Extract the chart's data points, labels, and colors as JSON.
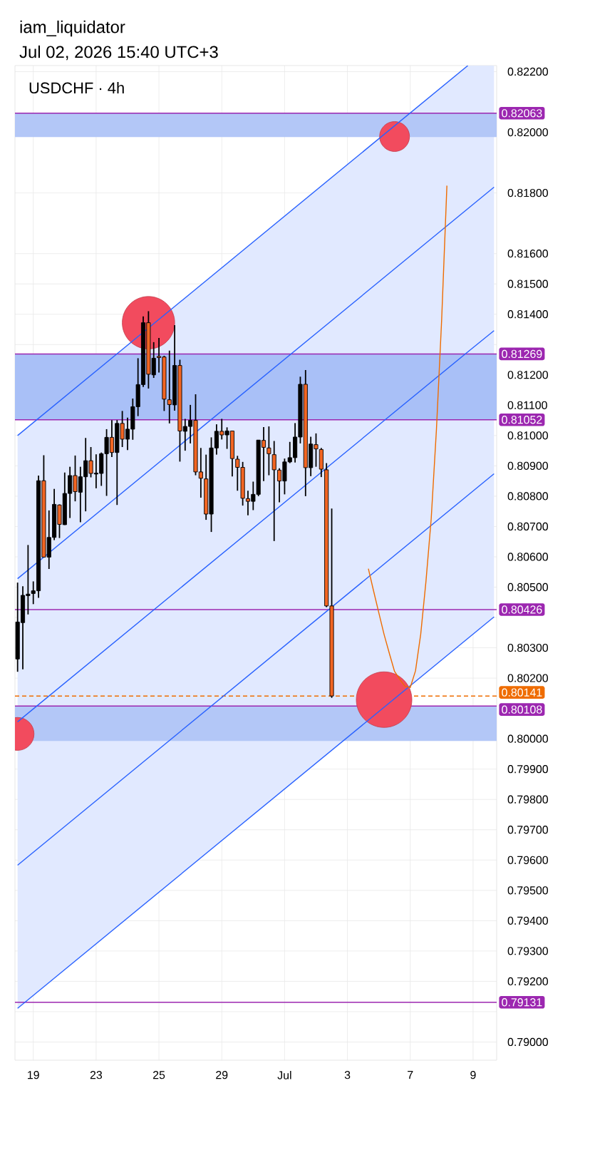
{
  "chart_data": {
    "type": "candlestick",
    "title": "USDCHF · 4h",
    "annotations": [
      "iam_liquidator",
      "Jul 02, 2026 15:40 UTC+3"
    ],
    "categories": [
      null,
      null,
      null,
      "19",
      null,
      null,
      null,
      null,
      null,
      null,
      null,
      null,
      null,
      null,
      null,
      "23",
      null,
      null,
      null,
      null,
      null,
      null,
      null,
      null,
      null,
      null,
      null,
      "25",
      null,
      null,
      null,
      null,
      null,
      null,
      null,
      null,
      null,
      null,
      null,
      "29",
      null,
      null,
      null,
      null,
      null,
      null,
      null,
      null,
      null,
      null,
      null,
      "Jul",
      null,
      null,
      null,
      null,
      null,
      null,
      null,
      null,
      null,
      null,
      null,
      "3",
      null,
      null,
      null,
      null,
      null,
      null,
      null,
      null,
      null,
      null,
      null,
      "7",
      null,
      null,
      null,
      null,
      null,
      null,
      null,
      null,
      null,
      null,
      null,
      "9",
      null,
      null,
      null,
      null
    ],
    "ylim": [
      0.7894,
      0.8222
    ],
    "yticks": [
      {
        "value": 0.79,
        "label": "0.79000"
      },
      {
        "value": 0.791,
        "label": null
      },
      {
        "value": 0.792,
        "label": "0.79200"
      },
      {
        "value": 0.793,
        "label": "0.79300"
      },
      {
        "value": 0.794,
        "label": "0.79400"
      },
      {
        "value": 0.795,
        "label": "0.79500"
      },
      {
        "value": 0.796,
        "label": "0.79600"
      },
      {
        "value": 0.797,
        "label": "0.79700"
      },
      {
        "value": 0.798,
        "label": "0.79800"
      },
      {
        "value": 0.799,
        "label": "0.79900"
      },
      {
        "value": 0.8,
        "label": "0.80000"
      },
      {
        "value": 0.801,
        "label": null
      },
      {
        "value": 0.802,
        "label": "0.80200"
      },
      {
        "value": 0.803,
        "label": "0.80300"
      },
      {
        "value": 0.804,
        "label": null
      },
      {
        "value": 0.805,
        "label": "0.80500"
      },
      {
        "value": 0.806,
        "label": "0.80600"
      },
      {
        "value": 0.807,
        "label": "0.80700"
      },
      {
        "value": 0.808,
        "label": "0.80800"
      },
      {
        "value": 0.809,
        "label": "0.80900"
      },
      {
        "value": 0.81,
        "label": "0.81000"
      },
      {
        "value": 0.811,
        "label": "0.81100"
      },
      {
        "value": 0.812,
        "label": "0.81200"
      },
      {
        "value": 0.813,
        "label": null
      },
      {
        "value": 0.814,
        "label": "0.81400"
      },
      {
        "value": 0.815,
        "label": "0.81500"
      },
      {
        "value": 0.816,
        "label": "0.81600"
      },
      {
        "value": 0.818,
        "label": "0.81800"
      },
      {
        "value": 0.82,
        "label": "0.82000"
      },
      {
        "value": 0.822,
        "label": "0.82200"
      }
    ],
    "grid": true,
    "bands": [
      {
        "axis": "y",
        "from": 0.81984,
        "to": 0.82063,
        "color": "#b3c7f7"
      },
      {
        "axis": "y",
        "from": 0.81052,
        "to": 0.81269,
        "color": "#a9c0f7"
      },
      {
        "axis": "y",
        "from": 0.79993,
        "to": 0.80108,
        "color": "#b3c7f7"
      }
    ],
    "ref_lines": [
      {
        "axis": "y",
        "value": 0.82063,
        "label": "0.82063",
        "color": "#9c27b0"
      },
      {
        "axis": "y",
        "value": 0.81269,
        "label": "0.81269",
        "color": "#9c27b0"
      },
      {
        "axis": "y",
        "value": 0.81052,
        "label": "0.81052",
        "color": "#9c27b0"
      },
      {
        "axis": "y",
        "value": 0.80426,
        "label": "0.80426",
        "color": "#9c27b0"
      },
      {
        "axis": "y",
        "value": 0.80141,
        "label": "0.80141",
        "color": "#ef6c00",
        "line_style": "dashed"
      },
      {
        "axis": "y",
        "value": 0.80108,
        "label": "0.80108",
        "color": "#9c27b0"
      },
      {
        "axis": "y",
        "value": 0.79131,
        "label": "0.79131",
        "color": "#9c27b0"
      }
    ],
    "series": [
      {
        "type": "line",
        "color": "#2962ff",
        "values": [
          0.80056,
          null,
          null,
          null,
          null,
          null,
          null,
          null,
          null,
          null,
          null,
          null,
          null,
          null,
          null,
          null,
          null,
          null,
          null,
          null,
          null,
          null,
          null,
          null,
          null,
          null,
          null,
          null,
          null,
          null,
          null,
          null,
          null,
          null,
          null,
          null,
          null,
          null,
          null,
          null,
          null,
          null,
          null,
          null,
          null,
          null,
          null,
          null,
          null,
          null,
          null,
          null,
          null,
          null,
          null,
          null,
          null,
          null,
          null,
          null,
          null,
          null,
          null,
          null,
          null,
          null,
          null,
          null,
          null,
          null,
          null,
          null,
          null,
          null,
          null,
          null,
          null,
          null,
          null,
          null,
          null,
          null,
          null,
          null,
          null,
          null,
          0.81276,
          null,
          null,
          null,
          null,
          0.81346
        ],
        "lower": [
          0.79111,
          null,
          null,
          null,
          null,
          null,
          null,
          null,
          null,
          null,
          null,
          null,
          null,
          null,
          null,
          null,
          null,
          null,
          null,
          null,
          null,
          null,
          null,
          null,
          null,
          null,
          null,
          null,
          null,
          null,
          null,
          null,
          null,
          null,
          null,
          null,
          null,
          null,
          null,
          null,
          null,
          null,
          null,
          null,
          null,
          null,
          null,
          null,
          null,
          null,
          null,
          null,
          null,
          null,
          null,
          null,
          null,
          null,
          null,
          null,
          null,
          null,
          null,
          null,
          null,
          null,
          null,
          null,
          null,
          null,
          null,
          null,
          null,
          null,
          null,
          null,
          null,
          null,
          null,
          null,
          null,
          null,
          null,
          null,
          null,
          null,
          0.80331,
          null,
          null,
          null,
          null,
          0.80402
        ],
        "upper": [
          0.81,
          null,
          null,
          null,
          null,
          null,
          null,
          null,
          null,
          null,
          null,
          null,
          null,
          null,
          null,
          null,
          null,
          null,
          null,
          null,
          null,
          null,
          null,
          null,
          null,
          null,
          null,
          null,
          null,
          null,
          null,
          null,
          null,
          null,
          null,
          null,
          null,
          null,
          null,
          null,
          null,
          null,
          null,
          null,
          null,
          null,
          null,
          null,
          null,
          null,
          null,
          null,
          null,
          null,
          null,
          null,
          null,
          null,
          null,
          null,
          null,
          null,
          null,
          null,
          null,
          null,
          null,
          null,
          null,
          null,
          null,
          null,
          null,
          null,
          null,
          null,
          null,
          null,
          null,
          null,
          null,
          null,
          null,
          null,
          null,
          null,
          0.8222,
          null,
          null,
          null,
          null,
          0.8222
        ]
      },
      {
        "type": "line",
        "color": "#2962ff",
        "values": [
          0.81,
          null,
          null,
          null,
          null,
          null,
          null,
          null,
          null,
          null,
          null,
          null,
          null,
          null,
          null,
          null,
          null,
          null,
          null,
          null,
          null,
          null,
          null,
          null,
          null,
          null,
          null,
          null,
          null,
          null,
          null,
          null,
          null,
          null,
          null,
          null,
          null,
          null,
          null,
          null,
          null,
          null,
          null,
          null,
          null,
          null,
          null,
          null,
          null,
          null,
          null,
          null,
          null,
          null,
          null,
          null,
          null,
          null,
          null,
          null,
          null,
          null,
          null,
          null,
          null,
          null,
          null,
          null,
          null,
          null,
          null,
          null,
          null,
          null,
          null,
          null,
          null,
          null,
          null,
          null,
          null,
          null,
          null,
          null,
          null,
          null,
          0.8222,
          null,
          null,
          null,
          null,
          null
        ]
      },
      {
        "type": "line",
        "color": "#2962ff",
        "values": [
          0.80528,
          null,
          null,
          null,
          null,
          null,
          null,
          null,
          null,
          null,
          null,
          null,
          null,
          null,
          null,
          null,
          null,
          null,
          null,
          null,
          null,
          null,
          null,
          null,
          null,
          null,
          null,
          null,
          null,
          null,
          null,
          null,
          null,
          null,
          null,
          null,
          null,
          null,
          null,
          null,
          null,
          null,
          null,
          null,
          null,
          null,
          null,
          null,
          null,
          null,
          null,
          null,
          null,
          null,
          null,
          null,
          null,
          null,
          null,
          null,
          null,
          null,
          null,
          null,
          null,
          null,
          null,
          null,
          null,
          null,
          null,
          null,
          null,
          null,
          null,
          null,
          null,
          null,
          null,
          null,
          null,
          null,
          null,
          null,
          null,
          null,
          null,
          null,
          null,
          null,
          null,
          0.81819
        ]
      },
      {
        "type": "line",
        "color": "#2962ff",
        "values": [
          0.79583,
          null,
          null,
          null,
          null,
          null,
          null,
          null,
          null,
          null,
          null,
          null,
          null,
          null,
          null,
          null,
          null,
          null,
          null,
          null,
          null,
          null,
          null,
          null,
          null,
          null,
          null,
          null,
          null,
          null,
          null,
          null,
          null,
          null,
          null,
          null,
          null,
          null,
          null,
          null,
          null,
          null,
          null,
          null,
          null,
          null,
          null,
          null,
          null,
          null,
          null,
          null,
          null,
          null,
          null,
          null,
          null,
          null,
          null,
          null,
          null,
          null,
          null,
          null,
          null,
          null,
          null,
          null,
          null,
          null,
          null,
          null,
          null,
          null,
          null,
          null,
          null,
          null,
          null,
          null,
          null,
          null,
          null,
          null,
          null,
          null,
          null,
          null,
          null,
          null,
          null,
          0.80874
        ]
      },
      {
        "type": "line",
        "color": "#2962ff",
        "values": [
          0.79111,
          null,
          null,
          null,
          null,
          null,
          null,
          null,
          null,
          null,
          null,
          null,
          null,
          null,
          null,
          null,
          null,
          null,
          null,
          null,
          null,
          null,
          null,
          null,
          null,
          null,
          null,
          null,
          null,
          null,
          null,
          null,
          null,
          null,
          null,
          null,
          null,
          null,
          null,
          null,
          null,
          null,
          null,
          null,
          null,
          null,
          null,
          null,
          null,
          null,
          null,
          null,
          null,
          null,
          null,
          null,
          null,
          null,
          null,
          null,
          null,
          null,
          null,
          null,
          null,
          null,
          null,
          null,
          null,
          null,
          null,
          null,
          null,
          null,
          null,
          null,
          null,
          null,
          null,
          null,
          null,
          null,
          null,
          null,
          null,
          null,
          null,
          null,
          null,
          null,
          null,
          0.80402
        ]
      },
      {
        "type": "line",
        "color": "#ef6c00",
        "values": [
          null,
          null,
          null,
          null,
          null,
          null,
          null,
          null,
          null,
          null,
          null,
          null,
          null,
          null,
          null,
          null,
          null,
          null,
          null,
          null,
          null,
          null,
          null,
          null,
          null,
          null,
          null,
          null,
          null,
          null,
          null,
          null,
          null,
          null,
          null,
          null,
          null,
          null,
          null,
          null,
          null,
          null,
          null,
          null,
          null,
          null,
          null,
          null,
          null,
          null,
          null,
          null,
          null,
          null,
          null,
          null,
          null,
          null,
          null,
          null,
          null,
          null,
          null,
          null,
          null,
          null,
          null,
          0.80561,
          0.80487,
          0.80415,
          0.80344,
          0.80282,
          0.80222,
          0.80196,
          0.80173,
          0.80169,
          0.80224,
          0.80345,
          0.80519,
          0.80725,
          0.8102,
          0.81383,
          0.81824,
          null,
          null,
          null,
          null,
          null,
          null,
          null,
          null,
          null
        ]
      },
      {
        "ohlc": [
          [
            0.80263,
            0.80515,
            0.80221,
            0.80385
          ],
          [
            0.80383,
            0.80503,
            0.80229,
            0.80473
          ],
          [
            0.80472,
            0.80639,
            0.8041,
            0.80477
          ],
          [
            0.80479,
            0.80519,
            0.80444,
            0.80488
          ],
          [
            0.80488,
            0.80868,
            0.80465,
            0.80851
          ],
          [
            0.80851,
            0.80935,
            0.80599,
            0.80599
          ],
          [
            0.80599,
            0.80753,
            0.8056,
            0.80664
          ],
          [
            0.80664,
            0.80824,
            0.80655,
            0.80773
          ],
          [
            0.80771,
            0.80773,
            0.80662,
            0.80707
          ],
          [
            0.80706,
            0.80878,
            0.80705,
            0.80809
          ],
          [
            0.80809,
            0.80897,
            0.80728,
            0.80868
          ],
          [
            0.80868,
            0.80934,
            0.80783,
            0.80815
          ],
          [
            0.80813,
            0.80897,
            0.80714,
            0.80864
          ],
          [
            0.80864,
            0.80992,
            0.8075,
            0.80917
          ],
          [
            0.80917,
            0.80962,
            0.80862,
            0.80875
          ],
          [
            0.80873,
            0.80938,
            0.80826,
            0.80876
          ],
          [
            0.80875,
            0.80944,
            0.80834,
            0.8094
          ],
          [
            0.8094,
            0.81021,
            0.80801,
            0.80994
          ],
          [
            0.80994,
            0.81051,
            0.80929,
            0.80944
          ],
          [
            0.80944,
            0.81051,
            0.80771,
            0.8104
          ],
          [
            0.8104,
            0.81081,
            0.80962,
            0.80988
          ],
          [
            0.80988,
            0.81059,
            0.80952,
            0.81021
          ],
          [
            0.81021,
            0.81122,
            0.80986,
            0.81095
          ],
          [
            0.81095,
            0.81255,
            0.81064,
            0.81168
          ],
          [
            0.81168,
            0.81393,
            0.8116,
            0.81372
          ],
          [
            0.81372,
            0.8141,
            0.81155,
            0.81202
          ],
          [
            0.812,
            0.81308,
            0.8119,
            0.81255
          ],
          [
            0.81261,
            0.81322,
            0.81208,
            0.81257
          ],
          [
            0.81259,
            0.81263,
            0.81081,
            0.8112
          ],
          [
            0.81118,
            0.8128,
            0.8104,
            0.81102
          ],
          [
            0.81101,
            0.81364,
            0.81082,
            0.81231
          ],
          [
            0.81231,
            0.8125,
            0.80914,
            0.81015
          ],
          [
            0.81014,
            0.81055,
            0.8095,
            0.8103
          ],
          [
            0.8103,
            0.81101,
            0.80974,
            0.8105
          ],
          [
            0.8105,
            0.81136,
            0.80869,
            0.8088
          ],
          [
            0.8088,
            0.80959,
            0.80795,
            0.80859
          ],
          [
            0.80857,
            0.80937,
            0.80722,
            0.80741
          ],
          [
            0.80741,
            0.80994,
            0.80682,
            0.80959
          ],
          [
            0.80959,
            0.81037,
            0.80937,
            0.81014
          ],
          [
            0.81014,
            0.81055,
            0.80987,
            0.81002
          ],
          [
            0.81002,
            0.81027,
            0.80956,
            0.81015
          ],
          [
            0.81015,
            0.81016,
            0.80865,
            0.80924
          ],
          [
            0.80922,
            0.80933,
            0.80818,
            0.80895
          ],
          [
            0.80895,
            0.80913,
            0.80769,
            0.80793
          ],
          [
            0.80792,
            0.80818,
            0.80737,
            0.80783
          ],
          [
            0.80783,
            0.80848,
            0.80754,
            0.80806
          ],
          [
            0.80806,
            0.80985,
            0.808,
            0.80985
          ],
          [
            0.80984,
            0.81028,
            0.8085,
            0.80961
          ],
          [
            0.80959,
            0.8103,
            0.80869,
            0.8094
          ],
          [
            0.80937,
            0.80982,
            0.80652,
            0.80887
          ],
          [
            0.80886,
            0.80892,
            0.8078,
            0.8085
          ],
          [
            0.8085,
            0.80924,
            0.80806,
            0.80913
          ],
          [
            0.80913,
            0.80979,
            0.80909,
            0.80927
          ],
          [
            0.80927,
            0.81041,
            0.80911,
            0.80995
          ],
          [
            0.80995,
            0.81194,
            0.80974,
            0.81169
          ],
          [
            0.81169,
            0.81216,
            0.808,
            0.80894
          ],
          [
            0.80894,
            0.80996,
            0.80866,
            0.80972
          ],
          [
            0.8097,
            0.81007,
            0.80897,
            0.80956
          ],
          [
            0.80954,
            0.80959,
            0.80863,
            0.80889
          ],
          [
            0.80887,
            0.80909,
            0.80434,
            0.80438
          ],
          [
            0.80438,
            0.80759,
            0.80135,
            0.80141
          ],
          null,
          null,
          null,
          null,
          null,
          null,
          null,
          null,
          null,
          null,
          null,
          null,
          null,
          null,
          null,
          null,
          null,
          null,
          null,
          null,
          null,
          null,
          null,
          null,
          null,
          null,
          null,
          null,
          null,
          null,
          null
        ],
        "colors": [
          "#000000",
          "#000000",
          "#000000",
          "#000000",
          "#000000",
          "#f26522",
          "#000000",
          "#000000",
          "#f26522",
          "#000000",
          "#000000",
          "#f26522",
          "#000000",
          "#000000",
          "#f26522",
          "#000000",
          "#000000",
          "#000000",
          "#f26522",
          "#000000",
          "#f26522",
          "#000000",
          "#000000",
          "#000000",
          "#000000",
          "#f26522",
          "#000000",
          "#f26522",
          "#f26522",
          "#f26522",
          "#000000",
          "#f26522",
          "#000000",
          "#000000",
          "#f26522",
          "#f26522",
          "#f26522",
          "#000000",
          "#000000",
          "#f26522",
          "#000000",
          "#f26522",
          "#f26522",
          "#f26522",
          "#f26522",
          "#000000",
          "#000000",
          "#f26522",
          "#f26522",
          "#f26522",
          "#f26522",
          "#000000",
          "#000000",
          "#000000",
          "#000000",
          "#f26522",
          "#000000",
          "#f26522",
          "#f26522",
          "#f26522",
          "#f26522",
          null,
          null,
          null,
          null,
          null,
          null,
          null,
          null,
          null,
          null,
          null,
          null,
          null,
          null,
          null,
          null,
          null,
          null,
          null,
          null,
          null,
          null,
          null,
          null,
          null,
          null,
          null,
          null,
          null,
          null,
          null
        ]
      },
      {
        "type": "bubble",
        "color": "#f24b5e",
        "values": [
          0.80016,
          null,
          null,
          null,
          null,
          null,
          null,
          null,
          null,
          null,
          null,
          null,
          null,
          null,
          null,
          null,
          null,
          null,
          null,
          null,
          null,
          null,
          null,
          null,
          null,
          0.81372,
          null,
          null,
          null,
          null,
          null,
          null,
          null,
          null,
          null,
          null,
          null,
          null,
          null,
          null,
          null,
          null,
          null,
          null,
          null,
          null,
          null,
          null,
          null,
          null,
          null,
          null,
          null,
          null,
          null,
          null,
          null,
          null,
          null,
          null,
          null,
          null,
          null,
          null,
          null,
          null,
          null,
          null,
          null,
          null,
          0.80129,
          null,
          0.81986,
          null,
          null,
          null,
          null,
          null,
          null,
          null,
          null,
          null,
          null,
          null,
          null,
          null,
          null,
          null,
          null,
          null,
          null,
          null
        ],
        "sizes": [
          0.35,
          null,
          null,
          null,
          null,
          null,
          null,
          null,
          null,
          null,
          null,
          null,
          null,
          null,
          null,
          null,
          null,
          null,
          null,
          null,
          null,
          null,
          null,
          null,
          null,
          0.89,
          null,
          null,
          null,
          null,
          null,
          null,
          null,
          null,
          null,
          null,
          null,
          null,
          null,
          null,
          null,
          null,
          null,
          null,
          null,
          null,
          null,
          null,
          null,
          null,
          null,
          null,
          null,
          null,
          null,
          null,
          null,
          null,
          null,
          null,
          null,
          null,
          null,
          null,
          null,
          null,
          null,
          null,
          null,
          null,
          1,
          null,
          0.29,
          null,
          null,
          null,
          null,
          null,
          null,
          null,
          null,
          null,
          null,
          null,
          null,
          null,
          null,
          null,
          null,
          null,
          null,
          null
        ]
      }
    ]
  }
}
